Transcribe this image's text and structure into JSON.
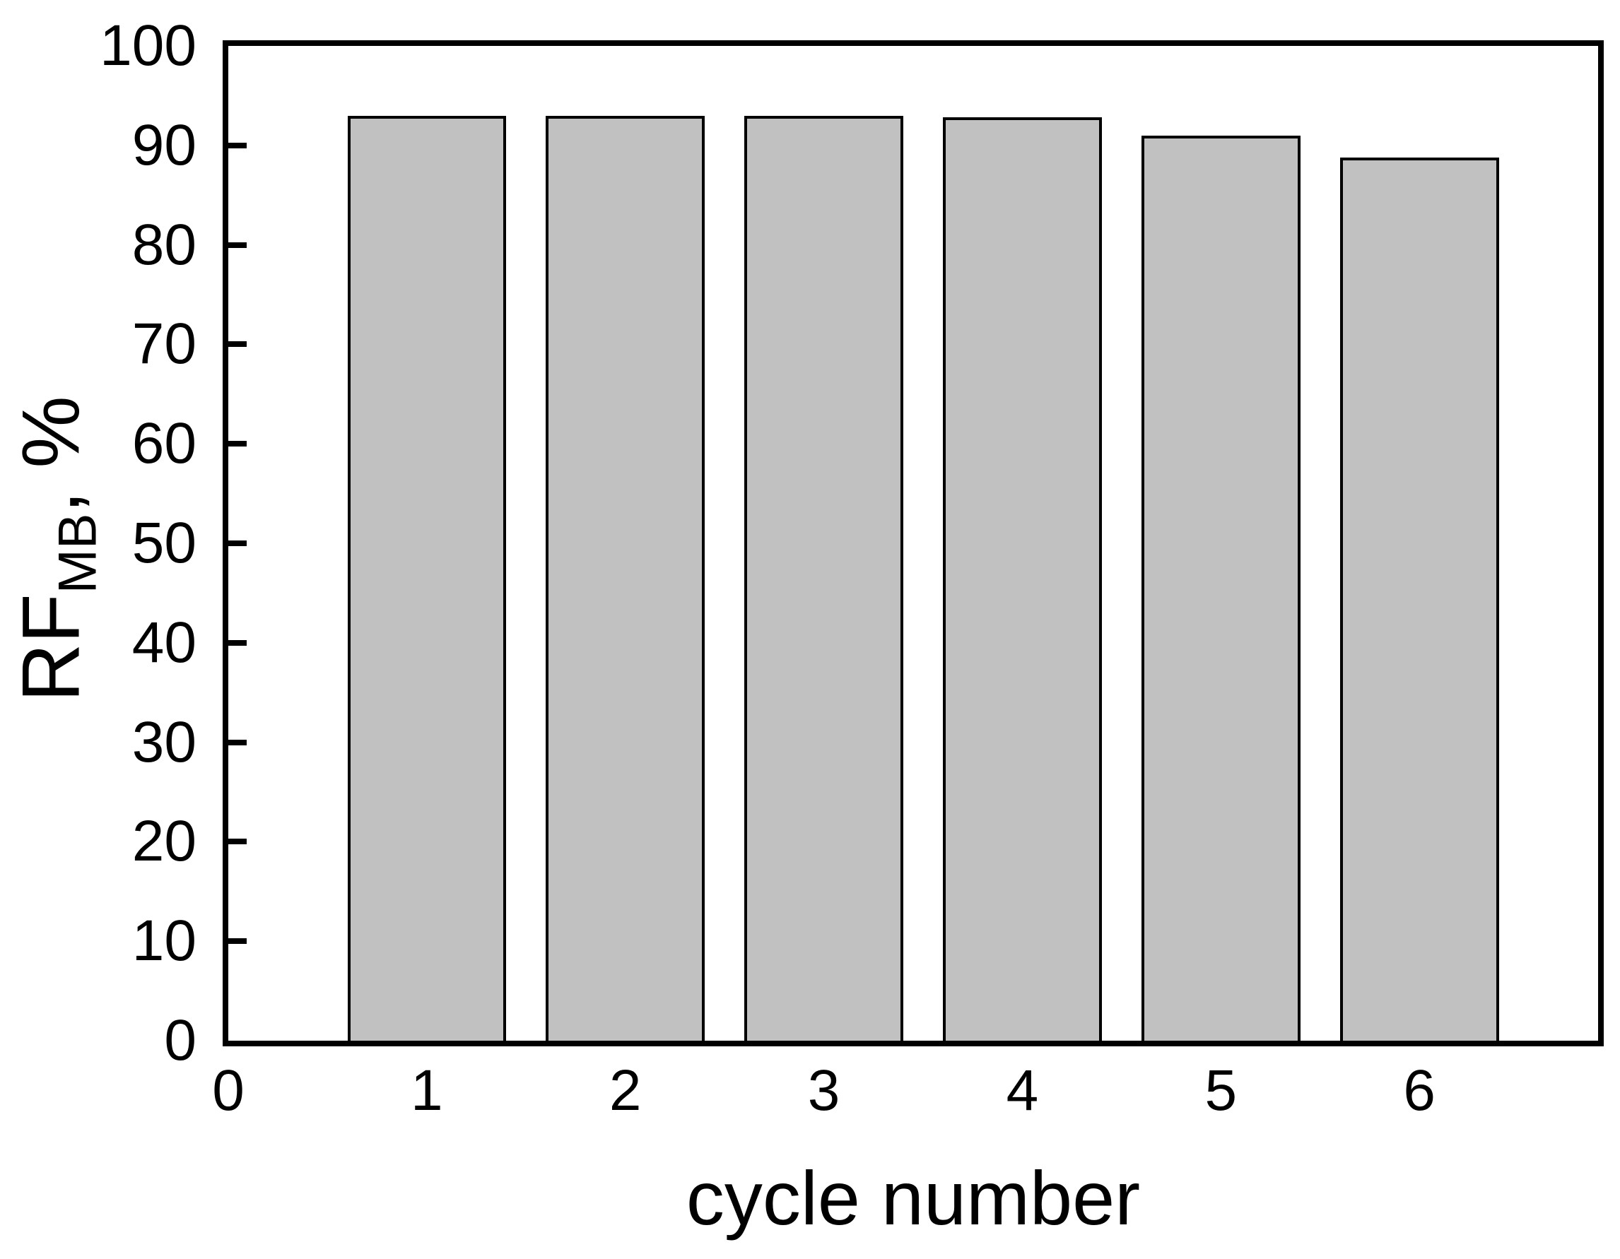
{
  "figure": {
    "background": "#ffffff",
    "text_color": "#000000"
  },
  "chart_data": {
    "type": "bar",
    "title": "",
    "categories": [
      1,
      2,
      3,
      4,
      5,
      6
    ],
    "values": [
      93,
      93,
      93,
      92.8,
      91,
      88.8
    ],
    "xlabel": "cycle number",
    "ylabel_main": "RF",
    "ylabel_sub": "MB",
    "ylabel_suffix": ", %",
    "xlim": [
      0,
      6.9
    ],
    "ylim": [
      0,
      100
    ],
    "x_ticks": [
      0,
      1,
      2,
      3,
      4,
      5,
      6
    ],
    "y_ticks": [
      0,
      10,
      20,
      30,
      40,
      50,
      60,
      70,
      80,
      90,
      100
    ],
    "bar_width_units": 0.8,
    "bar_fill": "#c1c1c1",
    "bar_border": "#000000",
    "axis_color": "#000000",
    "grid": false,
    "legend": null,
    "tick_style": "inward-major-left-axis-only"
  }
}
